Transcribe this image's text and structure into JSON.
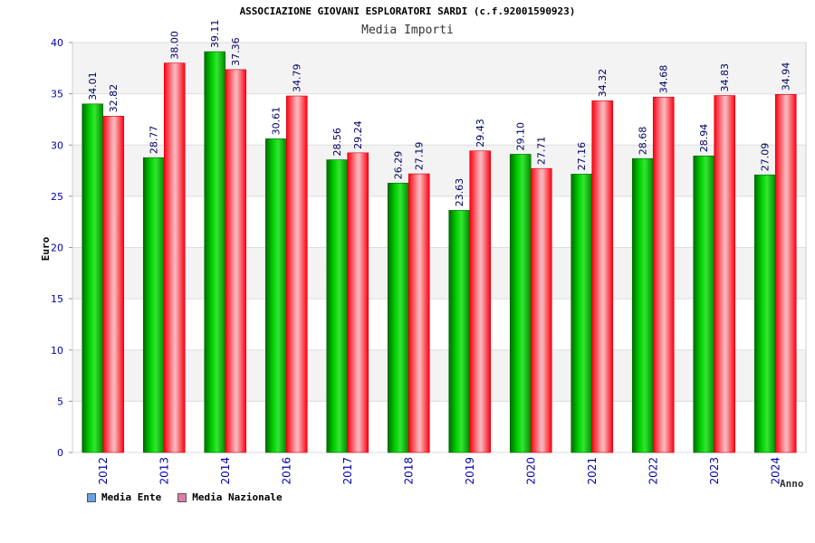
{
  "chart_data": {
    "type": "bar",
    "title": "ASSOCIAZIONE GIOVANI ESPLORATORI SARDI (c.f.92001590923)",
    "subtitle": "Media Importi",
    "xlabel": "Anno",
    "ylabel": "Euro",
    "ylim": [
      0,
      40
    ],
    "yticks": [
      0,
      5,
      10,
      15,
      20,
      25,
      30,
      35,
      40
    ],
    "grid": true,
    "legend_position": "bottom-left",
    "categories": [
      "2012",
      "2013",
      "2014",
      "2016",
      "2017",
      "2018",
      "2019",
      "2020",
      "2021",
      "2022",
      "2023",
      "2024"
    ],
    "series": [
      {
        "name": "Media Ente",
        "color": "#00b000",
        "legend_color": "#6aa0e0",
        "values": [
          34.01,
          28.77,
          39.11,
          30.61,
          28.56,
          26.29,
          23.63,
          29.1,
          27.16,
          28.68,
          28.94,
          27.09
        ],
        "labels": [
          "34.01",
          "28.77",
          "39.11",
          "30.61",
          "28.56",
          "26.29",
          "23.63",
          "29.10",
          "27.16",
          "28.68",
          "28.94",
          "27.09"
        ]
      },
      {
        "name": "Media Nazionale",
        "color": "#ff1a2a",
        "legend_color": "#e07aa8",
        "values": [
          32.82,
          38.0,
          37.36,
          34.79,
          29.24,
          27.19,
          29.43,
          27.71,
          34.32,
          34.68,
          34.83,
          34.94
        ],
        "labels": [
          "32.82",
          "38.00",
          "37.36",
          "34.79",
          "29.24",
          "27.19",
          "29.43",
          "27.71",
          "34.32",
          "34.68",
          "34.83",
          "34.94"
        ]
      }
    ]
  }
}
